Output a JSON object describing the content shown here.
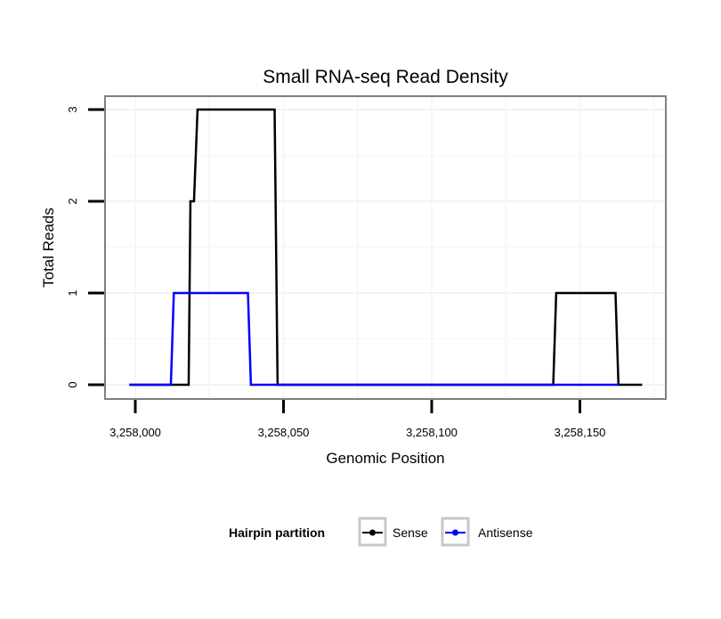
{
  "chart_data": {
    "type": "line",
    "title": "Small RNA-seq Read Density",
    "xlabel": "Genomic Position",
    "ylabel": "Total Reads",
    "xlim": [
      3257990,
      3258180
    ],
    "ylim": [
      -0.15,
      3.15
    ],
    "x_ticks": [
      3258000,
      3258050,
      3258100,
      3258150
    ],
    "x_tick_labels": [
      "3,258,000",
      "3,258,050",
      "3,258,100",
      "3,258,150"
    ],
    "y_ticks": [
      0,
      1,
      2,
      3
    ],
    "y_tick_labels": [
      "0",
      "1",
      "2",
      "3"
    ],
    "grid": true,
    "legend": {
      "title": "Hairpin partition",
      "placement": "bottom",
      "entries": [
        "Sense",
        "Antisense"
      ]
    },
    "series": [
      {
        "name": "Sense",
        "color": "#000000",
        "x": [
          3257998,
          3258018,
          3258018.6,
          3258019.8,
          3258021,
          3258047,
          3258048,
          3258141,
          3258142,
          3258162,
          3258163,
          3258171
        ],
        "y": [
          0,
          0,
          2,
          2,
          3,
          3,
          0,
          0,
          1,
          1,
          0,
          0
        ]
      },
      {
        "name": "Antisense",
        "color": "#0000ff",
        "x": [
          3257998,
          3258012,
          3258013,
          3258038,
          3258039,
          3258163
        ],
        "y": [
          0,
          0,
          1,
          1,
          0,
          0
        ]
      }
    ]
  }
}
